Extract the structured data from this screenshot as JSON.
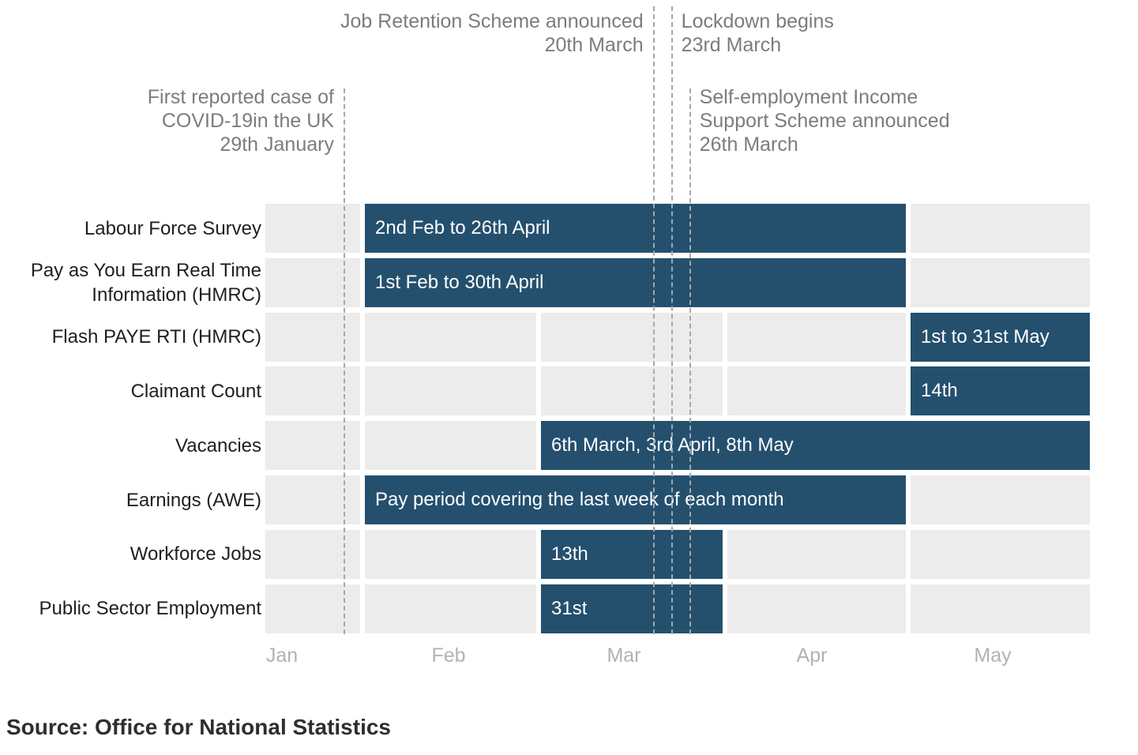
{
  "chart_data": {
    "type": "gantt",
    "x_axis": {
      "tick_labels": [
        "Jan",
        "Feb",
        "Mar",
        "Apr",
        "May"
      ]
    },
    "rows": [
      {
        "label": "Labour Force Survey",
        "bar_label": "2nd Feb to 26th April",
        "bar_start_month": "Feb",
        "bar_end_month": "Apr"
      },
      {
        "label": "Pay as You Earn Real Time\nInformation (HMRC)",
        "bar_label": "1st Feb to 30th April",
        "bar_start_month": "Feb",
        "bar_end_month": "Apr"
      },
      {
        "label": "Flash PAYE RTI (HMRC)",
        "bar_label": "1st to 31st May",
        "bar_start_month": "May",
        "bar_end_month": "May"
      },
      {
        "label": "Claimant Count",
        "bar_label": "14th",
        "bar_start_month": "May",
        "bar_end_month": "May"
      },
      {
        "label": "Vacancies",
        "bar_label": "6th March, 3rd April, 8th May",
        "bar_start_month": "Mar",
        "bar_end_month": "May"
      },
      {
        "label": "Earnings (AWE)",
        "bar_label": "Pay period covering the last week of each month",
        "bar_start_month": "Feb",
        "bar_end_month": "Apr"
      },
      {
        "label": "Workforce Jobs",
        "bar_label": "13th",
        "bar_start_month": "Mar",
        "bar_end_month": "Mar"
      },
      {
        "label": "Public Sector Employment",
        "bar_label": "31st",
        "bar_start_month": "Mar",
        "bar_end_month": "Mar"
      }
    ],
    "events": [
      {
        "text": "First reported case of\nCOVID-19in the UK\n29th January",
        "day_of_year": 29,
        "label_side": "left"
      },
      {
        "text": "Job Retention Scheme announced\n20th March",
        "day_of_year": 80,
        "label_side": "left"
      },
      {
        "text": "Lockdown begins\n23rd March",
        "day_of_year": 83,
        "label_side": "right"
      },
      {
        "text": "Self-employment Income\nSupport Scheme announced\n26th March",
        "day_of_year": 86,
        "label_side": "right"
      }
    ],
    "colors": {
      "bar": "#24506e",
      "track": "#ececec",
      "event_line": "#a4a8ab",
      "annotation_text": "#797d80",
      "axis_text": "#aeb3b8",
      "row_label_text": "#1f1f1f",
      "source_text": "#2e2e2e"
    }
  },
  "source": "Source: Office for National Statistics"
}
